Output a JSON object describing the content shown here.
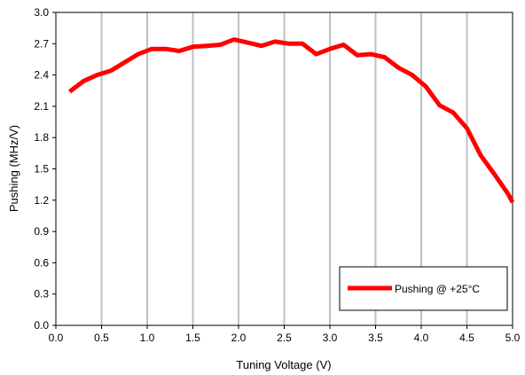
{
  "chart_data": {
    "type": "line",
    "title": "",
    "xlabel": "Tuning Voltage (V)",
    "ylabel": "Pushing (MHz/V)",
    "xlim": [
      0.0,
      5.0
    ],
    "ylim": [
      0.0,
      3.0
    ],
    "x_ticks": [
      "0.0",
      "0.5",
      "1.0",
      "1.5",
      "2.0",
      "2.5",
      "3.0",
      "3.5",
      "4.0",
      "4.5",
      "5.0"
    ],
    "y_ticks": [
      "0.0",
      "0.3",
      "0.6",
      "0.9",
      "1.2",
      "1.5",
      "1.8",
      "2.1",
      "2.4",
      "2.7",
      "3.0"
    ],
    "grid": "vertical",
    "legend_position": "bottom-right",
    "series": [
      {
        "name": "Pushing @ +25°C",
        "color": "#ff0000",
        "x": [
          0.15,
          0.3,
          0.45,
          0.6,
          0.75,
          0.9,
          1.05,
          1.2,
          1.35,
          1.5,
          1.65,
          1.8,
          1.95,
          2.1,
          2.25,
          2.4,
          2.55,
          2.7,
          2.85,
          3.0,
          3.15,
          3.3,
          3.45,
          3.6,
          3.75,
          3.9,
          4.05,
          4.2,
          4.35,
          4.5,
          4.65,
          4.8,
          4.95,
          5.0
        ],
        "y": [
          2.24,
          2.34,
          2.4,
          2.44,
          2.52,
          2.6,
          2.65,
          2.65,
          2.63,
          2.67,
          2.68,
          2.69,
          2.74,
          2.71,
          2.68,
          2.72,
          2.7,
          2.7,
          2.6,
          2.65,
          2.69,
          2.59,
          2.6,
          2.57,
          2.47,
          2.4,
          2.29,
          2.11,
          2.04,
          1.89,
          1.63,
          1.45,
          1.26,
          1.18
        ]
      }
    ]
  }
}
